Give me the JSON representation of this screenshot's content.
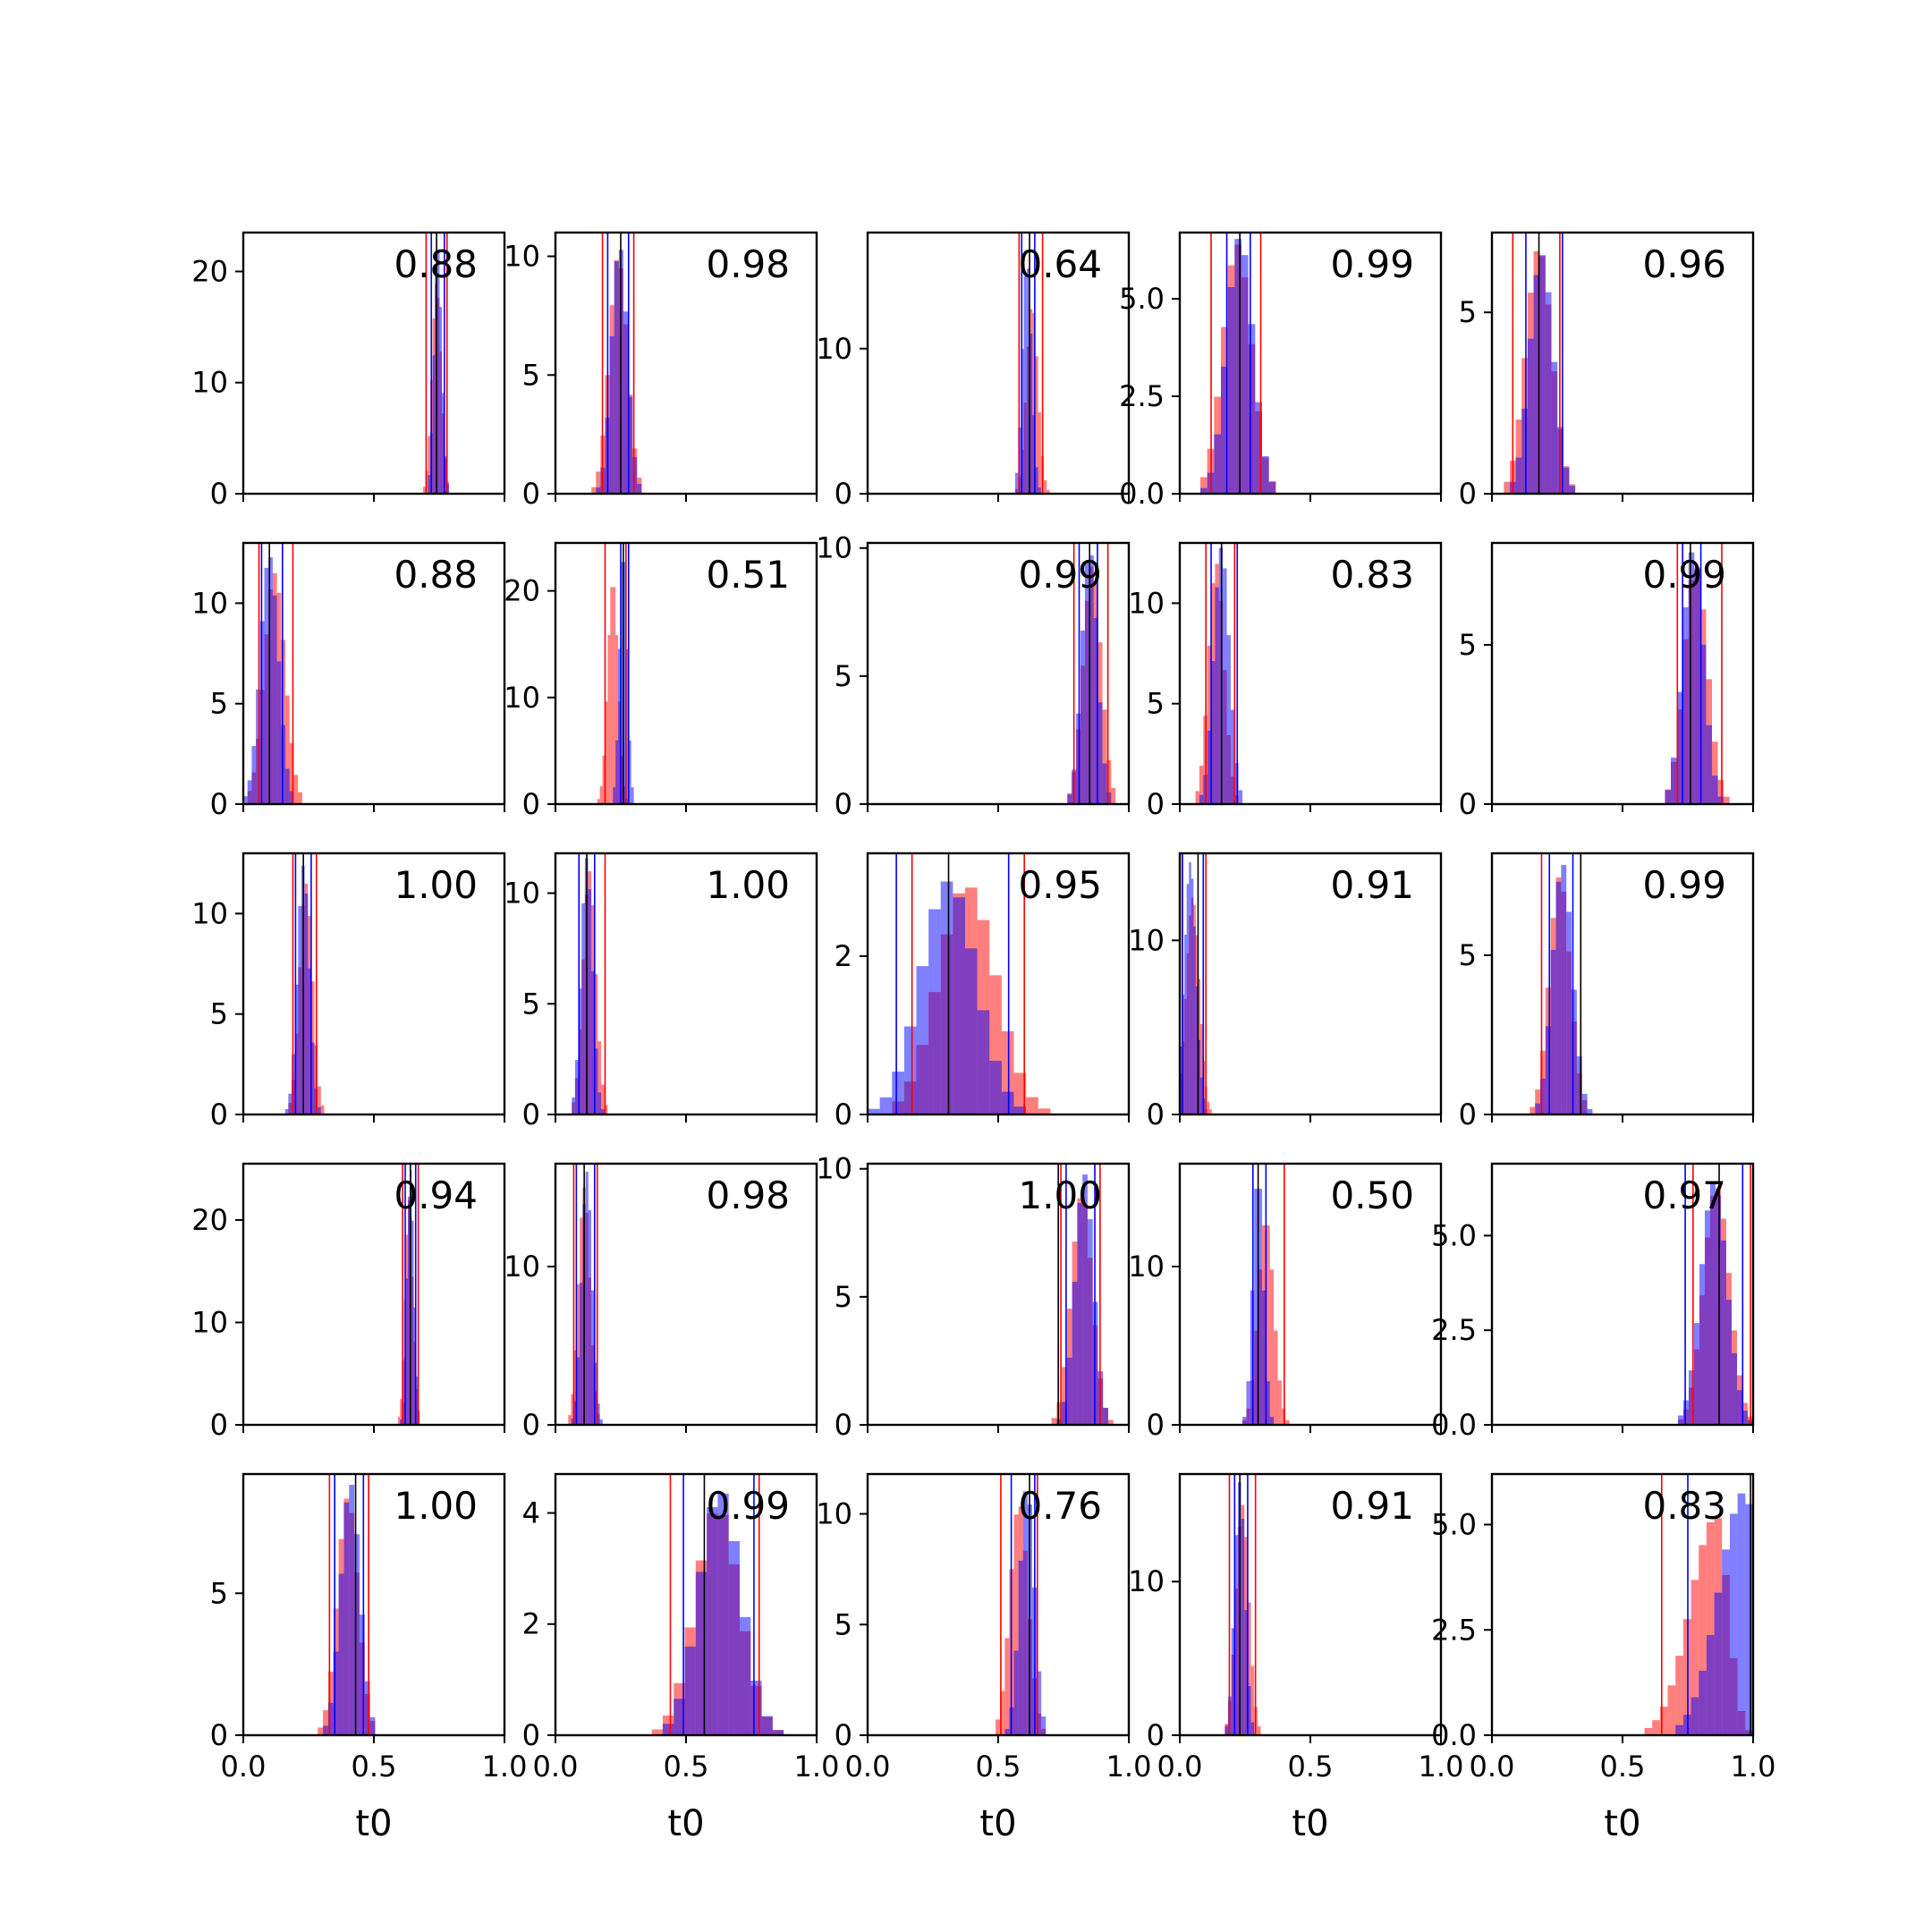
{
  "figure": {
    "xlabel": "t0",
    "xticks": [
      "0.0",
      "0.5",
      "1.0"
    ],
    "colors": {
      "red": "#ff0000",
      "blue": "#0000ff",
      "overlap": "#7f3fbf",
      "truth": "#000000"
    },
    "grid": false
  },
  "chart_data": [
    {
      "type": "bar",
      "title": "",
      "xlabel": "",
      "annotation": "0.88",
      "xlim": [
        0,
        1
      ],
      "ylim": [
        0,
        23.5
      ],
      "yticks": [
        "0",
        "10",
        "20"
      ],
      "red_lines": [
        0.7,
        0.78
      ],
      "blue_lines": [
        0.72,
        0.77
      ],
      "truth": 0.74,
      "red": {
        "center": 0.74,
        "spread": 0.018,
        "peak": 19
      },
      "blue": {
        "center": 0.745,
        "spread": 0.015,
        "peak": 22
      }
    },
    {
      "type": "bar",
      "title": "",
      "xlabel": "",
      "annotation": "0.98",
      "xlim": [
        0,
        1
      ],
      "ylim": [
        0,
        11
      ],
      "yticks": [
        "0",
        "5",
        "10"
      ],
      "red_lines": [
        0.18,
        0.3
      ],
      "blue_lines": [
        0.2,
        0.28
      ],
      "truth": 0.25,
      "red": {
        "center": 0.24,
        "spread": 0.035,
        "peak": 10
      },
      "blue": {
        "center": 0.245,
        "spread": 0.03,
        "peak": 10.5
      }
    },
    {
      "type": "bar",
      "title": "",
      "xlabel": "",
      "annotation": "0.64",
      "xlim": [
        0,
        1
      ],
      "ylim": [
        0,
        18
      ],
      "yticks": [
        "0",
        "10"
      ],
      "red_lines": [
        0.58,
        0.67
      ],
      "blue_lines": [
        0.59,
        0.64
      ],
      "truth": 0.62,
      "red": {
        "center": 0.63,
        "spread": 0.022,
        "peak": 13
      },
      "blue": {
        "center": 0.61,
        "spread": 0.018,
        "peak": 16
      }
    },
    {
      "type": "bar",
      "title": "",
      "xlabel": "",
      "annotation": "0.99",
      "xlim": [
        0,
        1
      ],
      "ylim": [
        0,
        6.7
      ],
      "yticks": [
        "0.0",
        "2.5",
        "5.0"
      ],
      "red_lines": [
        0.12,
        0.31
      ],
      "blue_lines": [
        0.18,
        0.27
      ],
      "truth": 0.23,
      "red": {
        "center": 0.22,
        "spread": 0.055,
        "peak": 6.4
      },
      "blue": {
        "center": 0.23,
        "spread": 0.05,
        "peak": 6.6
      }
    },
    {
      "type": "bar",
      "title": "",
      "xlabel": "",
      "annotation": "0.96",
      "xlim": [
        0,
        1
      ],
      "ylim": [
        0,
        7.2
      ],
      "yticks": [
        "0",
        "5"
      ],
      "red_lines": [
        0.08,
        0.26
      ],
      "blue_lines": [
        0.13,
        0.27
      ],
      "truth": 0.18,
      "red": {
        "center": 0.18,
        "spread": 0.05,
        "peak": 6.8
      },
      "blue": {
        "center": 0.19,
        "spread": 0.045,
        "peak": 6.6
      }
    },
    {
      "type": "bar",
      "title": "",
      "xlabel": "",
      "annotation": "0.88",
      "xlim": [
        0,
        1
      ],
      "ylim": [
        0,
        13
      ],
      "yticks": [
        "0",
        "5",
        "10"
      ],
      "red_lines": [
        0.06,
        0.19
      ],
      "blue_lines": [
        0.07,
        0.15
      ],
      "truth": 0.1,
      "red": {
        "center": 0.12,
        "spread": 0.04,
        "peak": 11.5
      },
      "blue": {
        "center": 0.1,
        "spread": 0.035,
        "peak": 12.4
      }
    },
    {
      "type": "bar",
      "title": "",
      "xlabel": "",
      "annotation": "0.51",
      "xlim": [
        0,
        1
      ],
      "ylim": [
        0,
        24.5
      ],
      "yticks": [
        "0",
        "10",
        "20"
      ],
      "red_lines": [
        0.19,
        0.27
      ],
      "blue_lines": [
        0.25,
        0.28
      ],
      "truth": 0.26,
      "red": {
        "center": 0.22,
        "spread": 0.02,
        "peak": 21
      },
      "blue": {
        "center": 0.26,
        "spread": 0.015,
        "peak": 24
      }
    },
    {
      "type": "bar",
      "title": "",
      "xlabel": "",
      "annotation": "0.99",
      "xlim": [
        0,
        1
      ],
      "ylim": [
        0,
        10.2
      ],
      "yticks": [
        "0",
        "5",
        "10"
      ],
      "red_lines": [
        0.79,
        0.92
      ],
      "blue_lines": [
        0.81,
        0.88
      ],
      "truth": 0.85,
      "red": {
        "center": 0.86,
        "spread": 0.035,
        "peak": 9.3
      },
      "blue": {
        "center": 0.85,
        "spread": 0.03,
        "peak": 10
      }
    },
    {
      "type": "bar",
      "title": "",
      "xlabel": "",
      "annotation": "0.83",
      "xlim": [
        0,
        1
      ],
      "ylim": [
        0,
        13
      ],
      "yticks": [
        "0",
        "5",
        "10"
      ],
      "red_lines": [
        0.1,
        0.21
      ],
      "blue_lines": [
        0.12,
        0.22
      ],
      "truth": 0.16,
      "red": {
        "center": 0.14,
        "spread": 0.03,
        "peak": 12
      },
      "blue": {
        "center": 0.16,
        "spread": 0.03,
        "peak": 12.8
      }
    },
    {
      "type": "bar",
      "title": "",
      "xlabel": "",
      "annotation": "0.99",
      "xlim": [
        0,
        1
      ],
      "ylim": [
        0,
        8.2
      ],
      "yticks": [
        "0",
        "5"
      ],
      "red_lines": [
        0.71,
        0.88
      ],
      "blue_lines": [
        0.73,
        0.8
      ],
      "truth": 0.76,
      "red": {
        "center": 0.78,
        "spread": 0.045,
        "peak": 7.5
      },
      "blue": {
        "center": 0.77,
        "spread": 0.04,
        "peak": 8
      }
    },
    {
      "type": "bar",
      "title": "",
      "xlabel": "",
      "annotation": "1.00",
      "xlim": [
        0,
        1
      ],
      "ylim": [
        0,
        13
      ],
      "yticks": [
        "0",
        "5",
        "10"
      ],
      "red_lines": [
        0.19,
        0.28
      ],
      "blue_lines": [
        0.2,
        0.26
      ],
      "truth": 0.23,
      "red": {
        "center": 0.24,
        "spread": 0.025,
        "peak": 11.5
      },
      "blue": {
        "center": 0.23,
        "spread": 0.023,
        "peak": 12.4
      }
    },
    {
      "type": "bar",
      "title": "",
      "xlabel": "",
      "annotation": "1.00",
      "xlim": [
        0,
        1
      ],
      "ylim": [
        0,
        11.8
      ],
      "yticks": [
        "0",
        "5",
        "10"
      ],
      "red_lines": [
        0.09,
        0.19
      ],
      "blue_lines": [
        0.09,
        0.15
      ],
      "truth": 0.12,
      "red": {
        "center": 0.13,
        "spread": 0.025,
        "peak": 11
      },
      "blue": {
        "center": 0.12,
        "spread": 0.022,
        "peak": 11.6
      }
    },
    {
      "type": "bar",
      "title": "",
      "xlabel": "",
      "annotation": "0.95",
      "xlim": [
        0,
        1
      ],
      "ylim": [
        0,
        3.3
      ],
      "yticks": [
        "0",
        "2"
      ],
      "red_lines": [
        0.17,
        0.6
      ],
      "blue_lines": [
        0.11,
        0.54
      ],
      "truth": 0.31,
      "red": {
        "center": 0.38,
        "spread": 0.11,
        "peak": 2.9
      },
      "blue": {
        "center": 0.31,
        "spread": 0.105,
        "peak": 2.95
      }
    },
    {
      "type": "bar",
      "title": "",
      "xlabel": "",
      "annotation": "0.91",
      "xlim": [
        0,
        1
      ],
      "ylim": [
        0,
        15
      ],
      "yticks": [
        "0",
        "10"
      ],
      "red_lines": [
        0.01,
        0.1
      ],
      "blue_lines": [
        0.01,
        0.09
      ],
      "truth": 0.07,
      "red": {
        "center": 0.05,
        "spread": 0.025,
        "peak": 12.5
      },
      "blue": {
        "center": 0.04,
        "spread": 0.022,
        "peak": 14.5
      }
    },
    {
      "type": "bar",
      "title": "",
      "xlabel": "",
      "annotation": "0.99",
      "xlim": [
        0,
        1
      ],
      "ylim": [
        0,
        8.2
      ],
      "yticks": [
        "0",
        "5"
      ],
      "red_lines": [
        0.19,
        0.34
      ],
      "blue_lines": [
        0.22,
        0.31
      ],
      "truth": 0.34,
      "red": {
        "center": 0.26,
        "spread": 0.04,
        "peak": 7.5
      },
      "blue": {
        "center": 0.27,
        "spread": 0.038,
        "peak": 7.9
      }
    },
    {
      "type": "bar",
      "title": "",
      "xlabel": "",
      "annotation": "0.94",
      "xlim": [
        0,
        1
      ],
      "ylim": [
        0,
        25.5
      ],
      "yticks": [
        "0",
        "10",
        "20"
      ],
      "red_lines": [
        0.61,
        0.67
      ],
      "blue_lines": [
        0.62,
        0.66
      ],
      "truth": 0.64,
      "red": {
        "center": 0.635,
        "spread": 0.015,
        "peak": 22
      },
      "blue": {
        "center": 0.64,
        "spread": 0.013,
        "peak": 25
      }
    },
    {
      "type": "bar",
      "title": "",
      "xlabel": "",
      "annotation": "0.98",
      "xlim": [
        0,
        1
      ],
      "ylim": [
        0,
        16.5
      ],
      "yticks": [
        "0",
        "10"
      ],
      "red_lines": [
        0.07,
        0.16
      ],
      "blue_lines": [
        0.08,
        0.15
      ],
      "truth": 0.11,
      "red": {
        "center": 0.11,
        "spread": 0.022,
        "peak": 15
      },
      "blue": {
        "center": 0.12,
        "spread": 0.02,
        "peak": 16
      }
    },
    {
      "type": "bar",
      "title": "",
      "xlabel": "",
      "annotation": "1.00",
      "xlim": [
        0,
        1
      ],
      "ylim": [
        0,
        10.2
      ],
      "yticks": [
        "0",
        "5",
        "10"
      ],
      "red_lines": [
        0.74,
        0.89
      ],
      "blue_lines": [
        0.76,
        0.87
      ],
      "truth": 0.73,
      "red": {
        "center": 0.82,
        "spread": 0.04,
        "peak": 9
      },
      "blue": {
        "center": 0.83,
        "spread": 0.035,
        "peak": 9.8
      }
    },
    {
      "type": "bar",
      "title": "",
      "xlabel": "",
      "annotation": "0.50",
      "xlim": [
        0,
        1
      ],
      "ylim": [
        0,
        16.5
      ],
      "yticks": [
        "0",
        "10"
      ],
      "red_lines": [
        0.28,
        0.4
      ],
      "blue_lines": [
        0.28,
        0.33
      ],
      "truth": 0.3,
      "red": {
        "center": 0.33,
        "spread": 0.03,
        "peak": 13
      },
      "blue": {
        "center": 0.3,
        "spread": 0.02,
        "peak": 16
      }
    },
    {
      "type": "bar",
      "title": "",
      "xlabel": "",
      "annotation": "0.97",
      "xlim": [
        0,
        1
      ],
      "ylim": [
        0,
        6.9
      ],
      "yticks": [
        "0.0",
        "2.5",
        "5.0"
      ],
      "red_lines": [
        0.77,
        0.99
      ],
      "blue_lines": [
        0.74,
        0.96
      ],
      "truth": 0.87,
      "red": {
        "center": 0.86,
        "spread": 0.05,
        "peak": 6.3
      },
      "blue": {
        "center": 0.85,
        "spread": 0.05,
        "peak": 6.4
      }
    },
    {
      "type": "bar",
      "title": "",
      "xlabel": "",
      "annotation": "1.00",
      "xlim": [
        0,
        1
      ],
      "ylim": [
        0,
        9.2
      ],
      "yticks": [
        "0",
        "5"
      ],
      "red_lines": [
        0.33,
        0.48
      ],
      "blue_lines": [
        0.35,
        0.46
      ],
      "truth": 0.43,
      "red": {
        "center": 0.4,
        "spread": 0.04,
        "peak": 8.4
      },
      "blue": {
        "center": 0.41,
        "spread": 0.037,
        "peak": 8.9
      }
    },
    {
      "type": "bar",
      "title": "",
      "xlabel": "",
      "annotation": "0.99",
      "xlim": [
        0,
        1
      ],
      "ylim": [
        0,
        4.7
      ],
      "yticks": [
        "0",
        "2",
        "4"
      ],
      "red_lines": [
        0.44,
        0.78
      ],
      "blue_lines": [
        0.49,
        0.76
      ],
      "truth": 0.57,
      "red": {
        "center": 0.62,
        "spread": 0.085,
        "peak": 4.1
      },
      "blue": {
        "center": 0.63,
        "spread": 0.08,
        "peak": 4.4
      }
    },
    {
      "type": "bar",
      "title": "",
      "xlabel": "",
      "annotation": "0.76",
      "xlim": [
        0,
        1
      ],
      "ylim": [
        0,
        11.8
      ],
      "yticks": [
        "0",
        "5",
        "10"
      ],
      "red_lines": [
        0.51,
        0.65
      ],
      "blue_lines": [
        0.55,
        0.64
      ],
      "truth": 0.62,
      "red": {
        "center": 0.58,
        "spread": 0.035,
        "peak": 10.5
      },
      "blue": {
        "center": 0.61,
        "spread": 0.028,
        "peak": 11.3
      }
    },
    {
      "type": "bar",
      "title": "",
      "xlabel": "",
      "annotation": "0.91",
      "xlim": [
        0,
        1
      ],
      "ylim": [
        0,
        17
      ],
      "yticks": [
        "0",
        "10"
      ],
      "red_lines": [
        0.19,
        0.29
      ],
      "blue_lines": [
        0.21,
        0.26
      ],
      "truth": 0.23,
      "red": {
        "center": 0.24,
        "spread": 0.025,
        "peak": 15
      },
      "blue": {
        "center": 0.23,
        "spread": 0.02,
        "peak": 16.5
      }
    },
    {
      "type": "bar",
      "title": "",
      "xlabel": "",
      "annotation": "0.83",
      "xlim": [
        0,
        1
      ],
      "ylim": [
        0,
        6.2
      ],
      "yticks": [
        "0.0",
        "2.5",
        "5.0"
      ],
      "red_lines": [
        0.65,
        1.0
      ],
      "blue_lines": [
        0.75,
        1.0
      ],
      "truth": 0.99,
      "red": {
        "center": 0.86,
        "spread": 0.1,
        "peak": 5.2,
        "skew": true
      },
      "blue": {
        "center": 0.97,
        "spread": 0.1,
        "peak": 5.8,
        "skew": true
      }
    }
  ]
}
